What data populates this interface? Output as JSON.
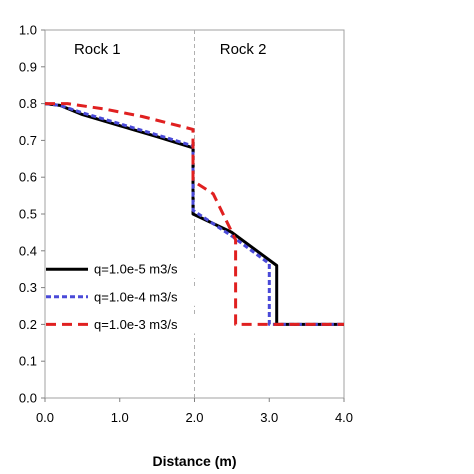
{
  "chart_data": {
    "type": "line",
    "xlabel": "Distance  (m)",
    "ylabel": "",
    "xlim": [
      0,
      4
    ],
    "ylim": [
      0,
      1
    ],
    "x_ticks": [
      "0.0",
      "1.0",
      "2.0",
      "3.0",
      "4.0"
    ],
    "y_ticks": [
      "0.0",
      "0.1",
      "0.2",
      "0.3",
      "0.4",
      "0.5",
      "0.6",
      "0.7",
      "0.8",
      "0.9",
      "1.0"
    ],
    "grid": false,
    "legend_position": "left",
    "regions": [
      {
        "label": "Rock 1",
        "x": 0.7
      },
      {
        "label": "Rock 2",
        "x": 2.65
      }
    ],
    "boundary_x": 2.0,
    "series": [
      {
        "name": "q=1.0e-5 m3/s",
        "color": "#000000",
        "dash": "solid",
        "points": [
          [
            0,
            0.8
          ],
          [
            0.2,
            0.795
          ],
          [
            0.5,
            0.77
          ],
          [
            1.0,
            0.74
          ],
          [
            1.5,
            0.71
          ],
          [
            1.98,
            0.68
          ],
          [
            1.98,
            0.5
          ],
          [
            2.5,
            0.45
          ],
          [
            3.1,
            0.36
          ],
          [
            3.1,
            0.2
          ],
          [
            4.0,
            0.2
          ]
        ]
      },
      {
        "name": "q=1.0e-4 m3/s",
        "color": "#4a4ad8",
        "dash": "dash",
        "points": [
          [
            0,
            0.8
          ],
          [
            0.2,
            0.795
          ],
          [
            0.5,
            0.775
          ],
          [
            1.0,
            0.745
          ],
          [
            1.5,
            0.715
          ],
          [
            1.98,
            0.685
          ],
          [
            1.98,
            0.51
          ],
          [
            2.5,
            0.44
          ],
          [
            3.0,
            0.365
          ],
          [
            3.0,
            0.2
          ],
          [
            4.0,
            0.2
          ]
        ]
      },
      {
        "name": "q=1.0e-3 m3/s",
        "color": "#e02020",
        "dash": "longdash",
        "points": [
          [
            0,
            0.8
          ],
          [
            0.3,
            0.8
          ],
          [
            0.8,
            0.785
          ],
          [
            1.3,
            0.765
          ],
          [
            1.98,
            0.73
          ],
          [
            1.98,
            0.59
          ],
          [
            2.25,
            0.555
          ],
          [
            2.55,
            0.43
          ],
          [
            2.55,
            0.2
          ],
          [
            3.0,
            0.2
          ],
          [
            4.0,
            0.2
          ]
        ]
      }
    ]
  }
}
